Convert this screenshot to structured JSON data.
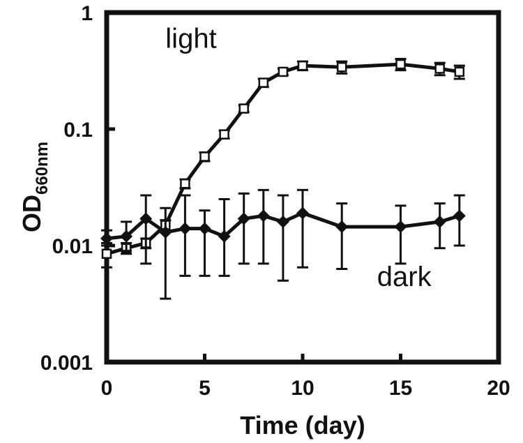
{
  "chart_data": {
    "type": "line",
    "title": "",
    "xlabel": "Time (day)",
    "ylabel": {
      "main": "OD",
      "subscript": "660nm"
    },
    "xlim": [
      0,
      20
    ],
    "ylim": [
      0.001,
      1
    ],
    "yscale": "log",
    "x_ticks": [
      0,
      5,
      10,
      15,
      20
    ],
    "x_tick_labels": [
      "0",
      "5",
      "10",
      "15",
      "20"
    ],
    "y_ticks": [
      0.001,
      0.01,
      0.1,
      1
    ],
    "y_tick_labels": [
      "0.001",
      "0.01",
      "0.1",
      "1"
    ],
    "grid": false,
    "annotations": [
      {
        "text": "light",
        "x": 3.0,
        "y": 0.5
      },
      {
        "text": "dark",
        "x": 13.8,
        "y": 0.0045
      }
    ],
    "series": [
      {
        "key": "light",
        "marker": "open-square",
        "x": [
          0,
          1,
          2,
          3,
          4,
          5,
          6,
          7,
          8,
          9,
          10,
          12,
          15,
          17,
          18
        ],
        "y": [
          0.0085,
          0.0095,
          0.0105,
          0.015,
          0.034,
          0.058,
          0.09,
          0.15,
          0.25,
          0.31,
          0.35,
          0.34,
          0.36,
          0.33,
          0.31
        ],
        "y_lower": [
          0.0065,
          0.0085,
          0.0095,
          0.013,
          0.031,
          0.053,
          0.083,
          0.14,
          0.23,
          0.29,
          0.32,
          0.3,
          0.32,
          0.29,
          0.27
        ],
        "y_upper": [
          0.0105,
          0.0105,
          0.0115,
          0.0165,
          0.037,
          0.063,
          0.097,
          0.16,
          0.27,
          0.33,
          0.38,
          0.38,
          0.4,
          0.37,
          0.35
        ]
      },
      {
        "key": "dark",
        "marker": "filled-diamond",
        "x": [
          0,
          1,
          2,
          3,
          4,
          5,
          6,
          7,
          8,
          9,
          10,
          12,
          15,
          17,
          18
        ],
        "y": [
          0.0115,
          0.012,
          0.017,
          0.013,
          0.014,
          0.014,
          0.012,
          0.017,
          0.018,
          0.016,
          0.019,
          0.0145,
          0.0145,
          0.016,
          0.018
        ],
        "y_lower": [
          0.01,
          0.009,
          0.007,
          0.0035,
          0.0055,
          0.0055,
          0.0055,
          0.007,
          0.007,
          0.005,
          0.0065,
          0.0063,
          0.007,
          0.0095,
          0.01
        ],
        "y_upper": [
          0.0135,
          0.016,
          0.027,
          0.021,
          0.027,
          0.02,
          0.025,
          0.028,
          0.03,
          0.027,
          0.03,
          0.023,
          0.022,
          0.023,
          0.027
        ]
      }
    ]
  }
}
